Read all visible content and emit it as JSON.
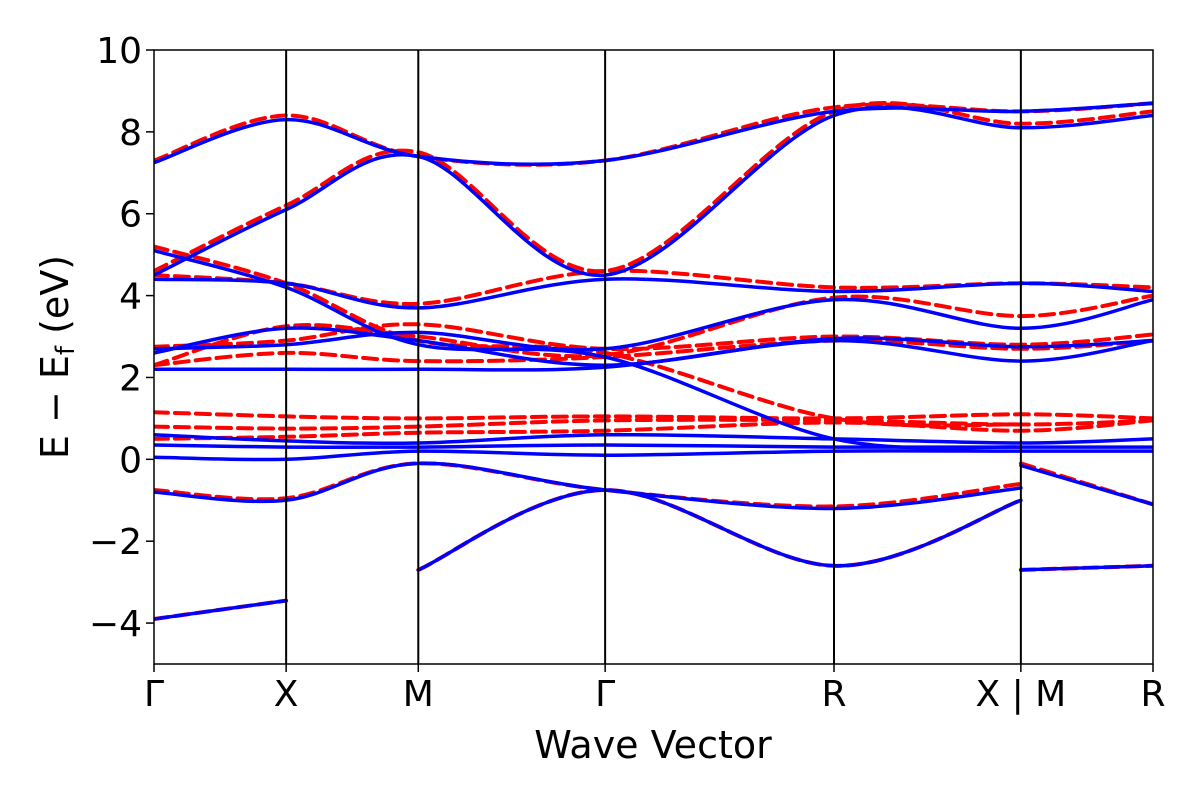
{
  "chart_data": {
    "type": "line",
    "xlabel": "Wave Vector",
    "ylabel_parts": {
      "main": "E − E",
      "sub": "f",
      "tail": " (eV)"
    },
    "ylim": [
      -5,
      10
    ],
    "yticks": [
      -4,
      -2,
      0,
      2,
      4,
      6,
      8,
      10
    ],
    "ytick_labels": [
      "−4",
      "−2",
      "0",
      "2",
      "4",
      "6",
      "8",
      "10"
    ],
    "k_points": [
      {
        "label": "Γ",
        "x": 0
      },
      {
        "label": "X",
        "x": 1
      },
      {
        "label": "M",
        "x": 2
      },
      {
        "label": "Γ",
        "x": 3.414
      },
      {
        "label": "R",
        "x": 5.146
      },
      {
        "label": "X | M",
        "x": 6.56
      },
      {
        "label": "R",
        "x": 7.56
      }
    ],
    "colors": {
      "solid": "#0000ff",
      "dashed": "#ff0000",
      "axes": "#000000"
    },
    "series": [
      {
        "style": "dashed",
        "bands": [
          [
            [
              0,
              -3.9
            ],
            [
              1,
              -3.45
            ]
          ],
          [
            [
              2,
              -2.7
            ],
            [
              3.414,
              -0.75
            ],
            [
              5.146,
              -2.6
            ],
            [
              6.56,
              -1.0
            ]
          ],
          [
            [
              6.56,
              -2.7
            ],
            [
              7.56,
              -2.6
            ]
          ],
          [
            [
              0,
              -0.75
            ],
            [
              1,
              -0.95
            ],
            [
              2,
              -0.1
            ],
            [
              3.414,
              -0.75
            ],
            [
              5.146,
              -1.15
            ],
            [
              6.56,
              -0.6
            ]
          ],
          [
            [
              6.56,
              -0.1
            ],
            [
              7.56,
              -1.1
            ]
          ],
          [
            [
              0,
              0.8
            ],
            [
              1,
              0.75
            ],
            [
              2,
              0.8
            ],
            [
              3.414,
              0.95
            ],
            [
              5.146,
              0.95
            ],
            [
              6.56,
              0.85
            ],
            [
              7.56,
              0.95
            ]
          ],
          [
            [
              0,
              1.15
            ],
            [
              1,
              1.05
            ],
            [
              2,
              1.0
            ],
            [
              3.414,
              1.05
            ],
            [
              5.146,
              1.0
            ],
            [
              6.56,
              1.1
            ],
            [
              7.56,
              1.0
            ]
          ],
          [
            [
              0,
              0.5
            ],
            [
              1,
              0.55
            ],
            [
              2,
              0.65
            ],
            [
              3.414,
              0.7
            ],
            [
              5.146,
              0.9
            ],
            [
              6.56,
              0.7
            ],
            [
              7.56,
              0.95
            ]
          ],
          [
            [
              0,
              2.3
            ],
            [
              1,
              2.6
            ],
            [
              2,
              2.4
            ],
            [
              3.414,
              2.5
            ],
            [
              5.146,
              2.9
            ],
            [
              6.56,
              2.7
            ],
            [
              7.56,
              2.9
            ]
          ],
          [
            [
              0,
              2.75
            ],
            [
              1,
              2.9
            ],
            [
              2,
              3.3
            ],
            [
              3.414,
              2.7
            ],
            [
              5.146,
              3.0
            ],
            [
              6.56,
              2.8
            ],
            [
              7.56,
              3.05
            ]
          ],
          [
            [
              0,
              2.3
            ],
            [
              1,
              3.25
            ],
            [
              2,
              3.0
            ],
            [
              3.414,
              2.55
            ],
            [
              5.146,
              3.95
            ],
            [
              6.56,
              3.5
            ],
            [
              7.56,
              4.0
            ]
          ],
          [
            [
              0,
              4.5
            ],
            [
              1,
              4.3
            ],
            [
              2,
              3.8
            ],
            [
              3.414,
              4.6
            ],
            [
              5.146,
              4.2
            ],
            [
              6.56,
              4.3
            ],
            [
              7.56,
              4.2
            ]
          ],
          [
            [
              0,
              4.6
            ],
            [
              1,
              6.2
            ],
            [
              2,
              7.5
            ],
            [
              3.414,
              4.6
            ],
            [
              5.146,
              8.5
            ],
            [
              6.56,
              8.2
            ],
            [
              7.56,
              8.5
            ]
          ],
          [
            [
              0,
              7.3
            ],
            [
              1,
              8.4
            ],
            [
              2,
              7.4
            ],
            [
              3.414,
              7.3
            ],
            [
              5.146,
              8.6
            ],
            [
              6.56,
              8.5
            ],
            [
              7.56,
              8.7
            ]
          ],
          [
            [
              0,
              5.2
            ],
            [
              1,
              4.3
            ],
            [
              2,
              2.9
            ],
            [
              3.414,
              2.6
            ],
            [
              5.146,
              1.0
            ],
            [
              6.56,
              0.85
            ]
          ]
        ]
      },
      {
        "style": "solid",
        "bands": [
          [
            [
              0,
              -3.9
            ],
            [
              1,
              -3.45
            ]
          ],
          [
            [
              2,
              -2.7
            ],
            [
              3.414,
              -0.75
            ],
            [
              5.146,
              -2.6
            ],
            [
              6.56,
              -1.0
            ]
          ],
          [
            [
              6.56,
              -2.7
            ],
            [
              7.56,
              -2.6
            ]
          ],
          [
            [
              0,
              -0.8
            ],
            [
              1,
              -1.0
            ],
            [
              2,
              -0.1
            ],
            [
              3.414,
              -0.75
            ],
            [
              5.146,
              -1.2
            ],
            [
              6.56,
              -0.7
            ]
          ],
          [
            [
              6.56,
              -0.15
            ],
            [
              7.56,
              -1.1
            ]
          ],
          [
            [
              0,
              0.05
            ],
            [
              1,
              0.0
            ],
            [
              2,
              0.2
            ],
            [
              3.414,
              0.1
            ],
            [
              5.146,
              0.2
            ],
            [
              6.56,
              0.2
            ],
            [
              7.56,
              0.2
            ]
          ],
          [
            [
              0,
              0.35
            ],
            [
              1,
              0.3
            ],
            [
              2,
              0.3
            ],
            [
              3.414,
              0.35
            ],
            [
              5.146,
              0.3
            ],
            [
              6.56,
              0.3
            ],
            [
              7.56,
              0.3
            ]
          ],
          [
            [
              0,
              0.6
            ],
            [
              1,
              0.45
            ],
            [
              2,
              0.4
            ],
            [
              3.414,
              0.6
            ],
            [
              5.146,
              0.5
            ],
            [
              6.56,
              0.4
            ],
            [
              7.56,
              0.5
            ]
          ],
          [
            [
              0,
              2.2
            ],
            [
              1,
              2.2
            ],
            [
              2,
              2.2
            ],
            [
              3.414,
              2.25
            ],
            [
              5.146,
              2.9
            ],
            [
              6.56,
              2.4
            ],
            [
              7.56,
              2.9
            ]
          ],
          [
            [
              0,
              2.7
            ],
            [
              1,
              2.8
            ],
            [
              2,
              3.1
            ],
            [
              3.414,
              2.7
            ],
            [
              5.146,
              3.9
            ],
            [
              6.56,
              3.2
            ],
            [
              7.56,
              3.9
            ]
          ],
          [
            [
              0,
              2.6
            ],
            [
              1,
              3.2
            ],
            [
              2,
              2.9
            ],
            [
              3.414,
              2.3
            ],
            [
              5.146,
              2.95
            ],
            [
              6.56,
              2.75
            ],
            [
              7.56,
              2.9
            ]
          ],
          [
            [
              0,
              4.4
            ],
            [
              1,
              4.3
            ],
            [
              2,
              3.7
            ],
            [
              3.414,
              4.4
            ],
            [
              5.146,
              4.1
            ],
            [
              6.56,
              4.3
            ],
            [
              7.56,
              4.1
            ]
          ],
          [
            [
              0,
              4.5
            ],
            [
              1,
              6.1
            ],
            [
              2,
              7.4
            ],
            [
              3.414,
              4.5
            ],
            [
              5.146,
              8.4
            ],
            [
              6.56,
              8.1
            ],
            [
              7.56,
              8.4
            ]
          ],
          [
            [
              0,
              7.25
            ],
            [
              1,
              8.3
            ],
            [
              2,
              7.4
            ],
            [
              3.414,
              7.3
            ],
            [
              5.146,
              8.5
            ],
            [
              6.56,
              8.5
            ],
            [
              7.56,
              8.7
            ]
          ],
          [
            [
              0,
              5.1
            ],
            [
              1,
              4.2
            ],
            [
              2,
              2.8
            ],
            [
              3.414,
              2.5
            ],
            [
              5.146,
              0.5
            ],
            [
              6.56,
              0.3
            ]
          ]
        ]
      }
    ]
  }
}
